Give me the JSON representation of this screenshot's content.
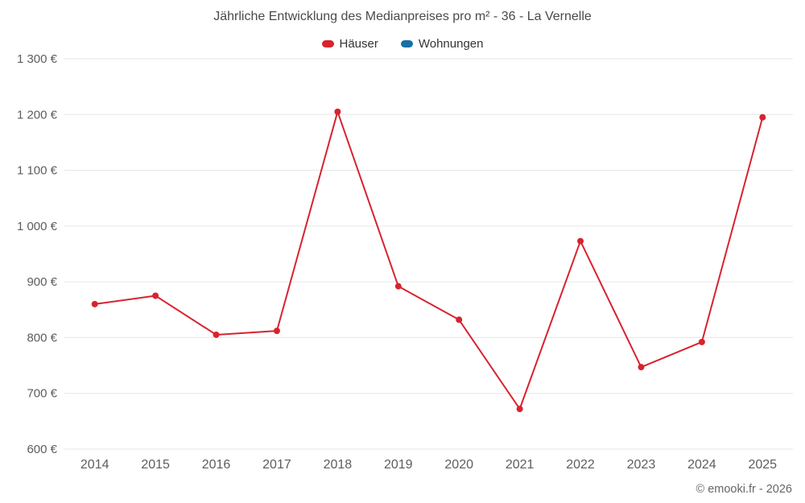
{
  "title": "Jährliche Entwicklung des Medianpreises pro m² - 36 - La Vernelle",
  "legend": [
    {
      "label": "Häuser",
      "color": "#d8232e"
    },
    {
      "label": "Wohnungen",
      "color": "#176fa8"
    }
  ],
  "footer": {
    "copyright": "© emooki.fr - 2026"
  },
  "chart_data": {
    "type": "line",
    "title": "Jährliche Entwicklung des Medianpreises pro m² - 36 - La Vernelle",
    "x": [
      2014,
      2015,
      2016,
      2017,
      2018,
      2019,
      2020,
      2021,
      2022,
      2023,
      2024,
      2025
    ],
    "series": [
      {
        "name": "Häuser",
        "color": "#d8232e",
        "values": [
          860,
          875,
          805,
          812,
          1205,
          892,
          832,
          672,
          973,
          747,
          792,
          1195
        ]
      },
      {
        "name": "Wohnungen",
        "color": "#176fa8",
        "values": []
      }
    ],
    "xlabel": "",
    "ylabel": "",
    "ylim": [
      600,
      1300
    ],
    "ytick_step": 100,
    "yticks": [
      "600 €",
      "700 €",
      "800 €",
      "900 €",
      "1 000 €",
      "1 100 €",
      "1 200 €",
      "1 300 €"
    ],
    "grid": true,
    "legend_position": "top",
    "grid_color": "#e6e6e6"
  }
}
